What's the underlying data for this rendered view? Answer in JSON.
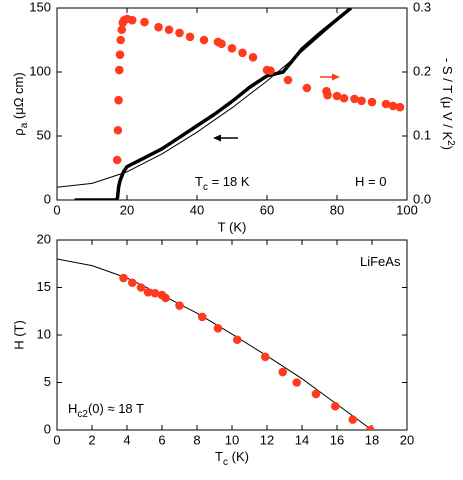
{
  "chart_data": [
    {
      "type": "line",
      "xlabel": "T (K)",
      "ylabel": {
        "parts": [
          "ρ",
          "a",
          " (μΩ cm)"
        ],
        "shift": "sub"
      },
      "y2label": {
        "parts": [
          "- S / T (μ V / K",
          "2",
          ")"
        ],
        "shift": "sup"
      },
      "xlim": [
        0,
        100
      ],
      "xticks": [
        0,
        20,
        40,
        60,
        80,
        100
      ],
      "ylim": [
        0,
        150
      ],
      "yticks": [
        0,
        50,
        100,
        150
      ],
      "y2lim": [
        0,
        0.3
      ],
      "y2ticks": [
        {
          "value": 0,
          "label": "0.0"
        },
        0.1,
        0.2,
        0.3
      ],
      "annotations": [
        {
          "parts": [
            "T",
            "c",
            " = 18 K"
          ],
          "shift": "sub"
        },
        {
          "parts": [
            "H = 0"
          ]
        }
      ],
      "series": [
        {
          "style": "line",
          "color": "#000000",
          "width": 1,
          "x": [
            0,
            10,
            20,
            30,
            40,
            50,
            60,
            70,
            80,
            83.4
          ],
          "values": [
            10,
            13,
            22,
            36,
            53,
            72,
            93,
            116,
            140,
            150
          ]
        },
        {
          "style": "line",
          "color": "#000000",
          "width": 3.5,
          "x": [
            5,
            17,
            17.3,
            17.6,
            18,
            19,
            20,
            25,
            30,
            35,
            40,
            45,
            50,
            55,
            60,
            64.6,
            70,
            75,
            80,
            84
          ],
          "values": [
            0,
            0,
            2,
            10,
            15,
            22,
            26,
            33,
            40,
            49,
            58,
            67,
            77,
            88,
            97,
            100,
            118,
            130,
            141,
            150
          ]
        },
        {
          "style": "dots",
          "color": "#ff3b1f",
          "axis": "y2",
          "x": [
            17.2,
            17.4,
            17.6,
            17.8,
            18,
            18.2,
            18.5,
            18.8,
            19.2,
            20,
            21.5,
            25,
            29,
            32,
            35,
            38,
            42,
            46,
            47,
            50,
            53,
            56,
            60,
            61,
            66,
            71.4,
            77,
            77.3,
            80,
            82,
            85,
            87,
            90,
            94,
            96,
            98
          ],
          "values": [
            0.0625,
            0.109,
            0.156,
            0.203,
            0.227,
            0.25,
            0.266,
            0.277,
            0.281,
            0.283,
            0.281,
            0.278,
            0.27,
            0.266,
            0.261,
            0.255,
            0.25,
            0.247,
            0.244,
            0.237,
            0.23,
            0.223,
            0.203,
            0.202,
            0.1875,
            0.175,
            0.17,
            0.164,
            0.1625,
            0.159,
            0.158,
            0.155,
            0.153,
            0.15,
            0.147,
            0.145
          ]
        }
      ]
    },
    {
      "type": "scatter",
      "xlabel": {
        "parts": [
          "T",
          "c",
          " (K)"
        ],
        "shift": "sub"
      },
      "ylabel": "H (T)",
      "xlim": [
        0,
        20
      ],
      "xticks": [
        0,
        2,
        4,
        6,
        8,
        10,
        12,
        14,
        16,
        18,
        20
      ],
      "ylim": [
        0,
        20
      ],
      "yticks": [
        0,
        5,
        10,
        15,
        20
      ],
      "annotations": [
        {
          "parts": [
            "LiFeAs"
          ],
          "color": "#ff3b1f"
        },
        {
          "parts": [
            "H",
            "c2",
            "(0) ≈ 18 T"
          ],
          "shift": "sub"
        }
      ],
      "series": [
        {
          "style": "line",
          "color": "#000000",
          "width": 1,
          "x": [
            0,
            2,
            4,
            6,
            8,
            10,
            12,
            14,
            16,
            18
          ],
          "values": [
            18,
            17.3,
            16,
            14.2,
            12.3,
            10.1,
            7.8,
            5.4,
            2.7,
            0
          ]
        },
        {
          "style": "dots",
          "color": "#ff3b1f",
          "x": [
            3.8,
            4.3,
            4.8,
            5.2,
            5.6,
            6.0,
            6.2,
            7.0,
            8.3,
            9.2,
            10.3,
            11.9,
            12.9,
            13.7,
            14.8,
            15.9,
            16.9,
            17.9
          ],
          "values": [
            16,
            15.5,
            15,
            14.5,
            14.4,
            14.2,
            13.9,
            13.1,
            11.9,
            10.7,
            9.5,
            7.7,
            6.1,
            5.0,
            3.8,
            2.5,
            1.1,
            0
          ]
        }
      ]
    }
  ]
}
